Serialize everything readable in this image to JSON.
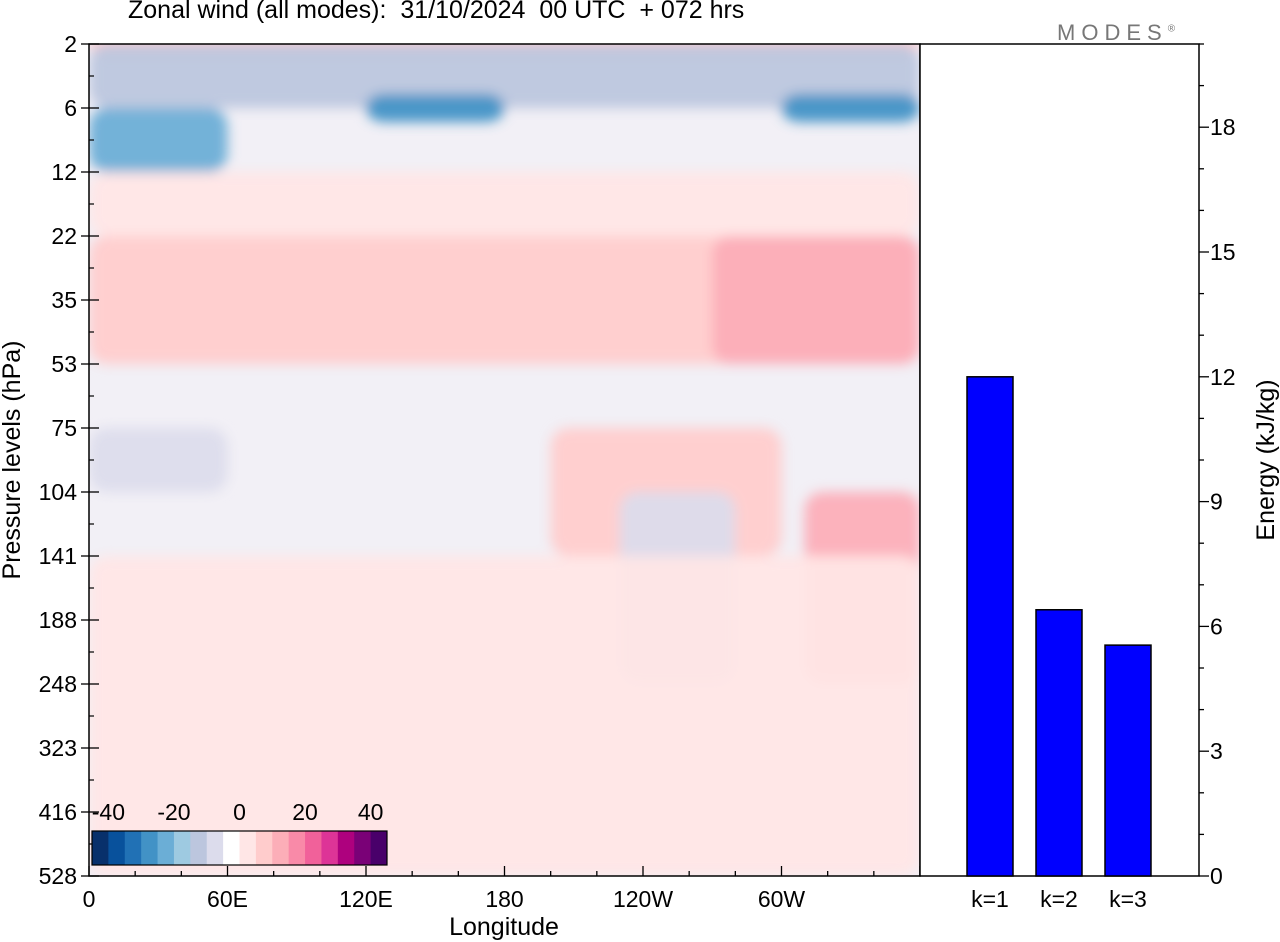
{
  "title": "Zonal wind (all modes):  31/10/2024  00 UTC  + 072 hrs",
  "logo": "MODES",
  "logo_mark": "®",
  "colors": {
    "bar_fill": "#0000ff",
    "bar_stroke": "#000000",
    "background_field": "#f2f0f6",
    "colorbar": [
      "#08306b",
      "#08519c",
      "#2171b5",
      "#4292c6",
      "#6baed6",
      "#9ecae1",
      "#bcc6de",
      "#dcdcec",
      "#ffffff",
      "#ffe6e6",
      "#ffcccc",
      "#fcaeb8",
      "#f98aa8",
      "#f1619a",
      "#dd3497",
      "#ae017e",
      "#7a0177",
      "#49006a"
    ]
  },
  "chart_data": [
    {
      "type": "heatmap",
      "title": "Zonal wind (all modes):  31/10/2024  00 UTC  + 072 hrs",
      "xlabel": "Longitude",
      "ylabel": "Pressure levels (hPa)",
      "x_ticks": [
        "0",
        "60E",
        "120E",
        "180",
        "120W",
        "60W"
      ],
      "x_tick_degrees": [
        0,
        60,
        120,
        180,
        240,
        300
      ],
      "xlim": [
        0,
        360
      ],
      "y_ticks": [
        "2",
        "6",
        "12",
        "22",
        "35",
        "53",
        "75",
        "104",
        "141",
        "188",
        "248",
        "323",
        "416",
        "528"
      ],
      "colorbar": {
        "ticks": [
          "-40",
          "-20",
          "0",
          "20",
          "40"
        ],
        "vmin": -45,
        "vmax": 45,
        "step": 5
      },
      "regions": [
        {
          "lon": [
            0,
            360
          ],
          "level": [
            "2",
            "2"
          ],
          "value": 5
        },
        {
          "lon": [
            0,
            360
          ],
          "level": [
            "2",
            "6"
          ],
          "value": -15
        },
        {
          "lon": [
            0,
            60
          ],
          "level": [
            "6",
            "12"
          ],
          "value": -25
        },
        {
          "lon": [
            120,
            180
          ],
          "level": [
            "6",
            "6"
          ],
          "value": -30
        },
        {
          "lon": [
            300,
            360
          ],
          "level": [
            "6",
            "6"
          ],
          "value": -28
        },
        {
          "lon": [
            0,
            360
          ],
          "level": [
            "12",
            "22"
          ],
          "value": 2
        },
        {
          "lon": [
            0,
            360
          ],
          "level": [
            "22",
            "53"
          ],
          "value": 8
        },
        {
          "lon": [
            270,
            360
          ],
          "level": [
            "22",
            "53"
          ],
          "value": 12
        },
        {
          "lon": [
            0,
            60
          ],
          "level": [
            "75",
            "104"
          ],
          "value": -6
        },
        {
          "lon": [
            200,
            300
          ],
          "level": [
            "75",
            "141"
          ],
          "value": 8
        },
        {
          "lon": [
            230,
            280
          ],
          "level": [
            "104",
            "248"
          ],
          "value": -8
        },
        {
          "lon": [
            310,
            360
          ],
          "level": [
            "104",
            "248"
          ],
          "value": 10
        },
        {
          "lon": [
            0,
            360
          ],
          "level": [
            "141",
            "528"
          ],
          "value": 0
        }
      ]
    },
    {
      "type": "bar",
      "categories": [
        "k=1",
        "k=2",
        "k=3"
      ],
      "values": [
        12.0,
        6.4,
        5.55
      ],
      "ylabel": "Energy (kJ/kg)",
      "ylim": [
        0,
        20
      ],
      "y_ticks": [
        0,
        3,
        6,
        9,
        12,
        15,
        18
      ]
    }
  ]
}
